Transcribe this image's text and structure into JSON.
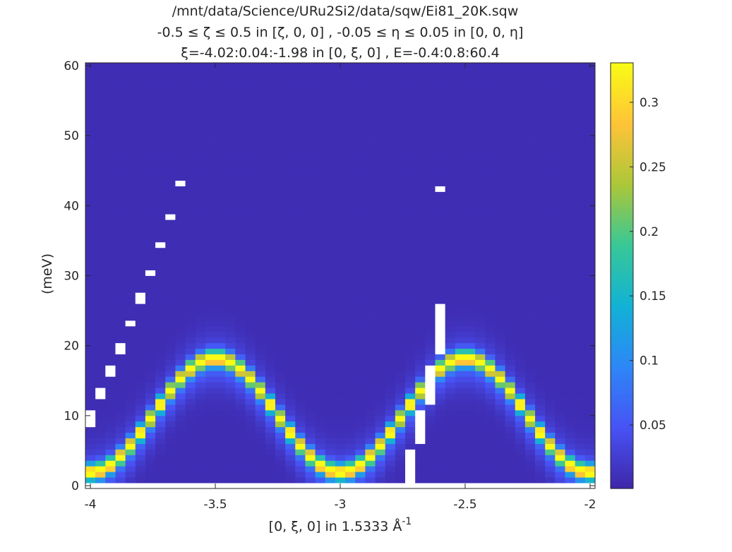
{
  "chart_data": {
    "type": "heatmap",
    "title_lines": [
      "/mnt/data/Science/URu2Si2/data/sqw/Ei81_20K.sqw",
      "-0.5 ≤ ζ ≤ 0.5 in [ζ, 0, 0] , -0.05 ≤ η ≤ 0.05 in [0, 0, η]",
      "ξ=-4.02:0.04:-1.98 in [0, ξ, 0] , E=-0.4:0.8:60.4"
    ],
    "xlabel": "[0, ξ, 0] in 1.5333 Å",
    "xlabel_superscript": "-1",
    "ylabel": "(meV)",
    "x_bins": {
      "start": -4.02,
      "step": 0.04,
      "end": -1.98
    },
    "y_bins": {
      "start": -0.4,
      "step": 0.8,
      "end": 60.4
    },
    "xlim": [
      -4.02,
      -1.98
    ],
    "ylim": [
      -0.4,
      60.4
    ],
    "xticks": [
      -4,
      -3.5,
      -3,
      -2.5,
      -2
    ],
    "xtick_labels": [
      "-4",
      "-3.5",
      "-3",
      "-2.5",
      "-2"
    ],
    "yticks": [
      0,
      10,
      20,
      30,
      40,
      50,
      60
    ],
    "ytick_labels": [
      "0",
      "10",
      "20",
      "30",
      "40",
      "50",
      "60"
    ],
    "intensity_model": {
      "dispersion": "E = Emin + A*sin^2(pi*xi)",
      "Emin": 2.0,
      "A": 16.3,
      "peak_intensity": 0.31,
      "peak_sigma_meV": 0.75,
      "tail_intensity": 0.045,
      "tail_sigma_meV": 2.6,
      "background": 0.008
    },
    "nan_cells": [
      {
        "x": -4.0,
        "E": [
          8.8,
          9.6,
          10.4
        ]
      },
      {
        "x": -3.96,
        "E": [
          12.8,
          13.6
        ]
      },
      {
        "x": -3.92,
        "E": [
          16.0,
          16.8
        ]
      },
      {
        "x": -3.88,
        "E": [
          19.2,
          20.0
        ]
      },
      {
        "x": -3.84,
        "E": [
          23.2
        ]
      },
      {
        "x": -3.8,
        "E": [
          26.4,
          27.2
        ]
      },
      {
        "x": -3.76,
        "E": [
          30.4
        ]
      },
      {
        "x": -3.72,
        "E": [
          34.4
        ]
      },
      {
        "x": -3.68,
        "E": [
          38.4
        ]
      },
      {
        "x": -3.64,
        "E": [
          43.2
        ]
      },
      {
        "x": -2.72,
        "E": [
          0.8,
          1.6,
          2.4,
          3.2,
          4.0,
          4.8
        ]
      },
      {
        "x": -2.68,
        "E": [
          6.4,
          7.2,
          8.0,
          8.8,
          9.6,
          10.4
        ]
      },
      {
        "x": -2.64,
        "E": [
          12.0,
          12.8,
          13.6,
          14.4,
          15.2,
          16.0,
          16.8
        ]
      },
      {
        "x": -2.6,
        "E": [
          19.2,
          20.0,
          20.8,
          21.6,
          22.4,
          23.2,
          24.0,
          24.8,
          25.6,
          42.4
        ]
      }
    ],
    "nan_rows_E": [
      0.0
    ],
    "colorbar": {
      "clim": [
        0.0008,
        0.3306
      ],
      "ticks": [
        0.05,
        0.1,
        0.15,
        0.2,
        0.25,
        0.3
      ],
      "tick_labels": [
        "0.05",
        "0.1",
        "0.15",
        "0.2",
        "0.25",
        "0.3"
      ],
      "colormap": "parula",
      "location": "right"
    },
    "nan_color": "#ffffff"
  }
}
